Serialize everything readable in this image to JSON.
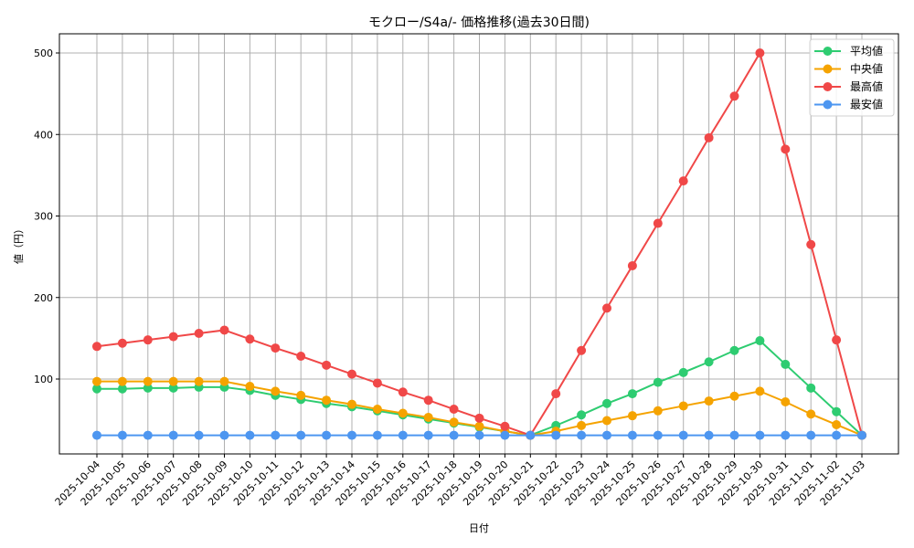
{
  "chart_data": {
    "type": "line",
    "title": "モクロー/S4a/- 価格推移(過去30日間)",
    "xlabel": "日付",
    "ylabel": "値（円）",
    "ylim": [
      20,
      525
    ],
    "yticks": [
      100,
      200,
      300,
      400,
      500
    ],
    "grid": true,
    "legend_position": "upper right",
    "categories": [
      "2025-10-04",
      "2025-10-05",
      "2025-10-06",
      "2025-10-07",
      "2025-10-08",
      "2025-10-09",
      "2025-10-10",
      "2025-10-11",
      "2025-10-12",
      "2025-10-13",
      "2025-10-14",
      "2025-10-15",
      "2025-10-16",
      "2025-10-17",
      "2025-10-18",
      "2025-10-19",
      "2025-10-20",
      "2025-10-21",
      "2025-10-22",
      "2025-10-23",
      "2025-10-24",
      "2025-10-25",
      "2025-10-26",
      "2025-10-27",
      "2025-10-28",
      "2025-10-29",
      "2025-10-30",
      "2025-10-31",
      "2025-11-01",
      "2025-11-02",
      "2025-11-03"
    ],
    "series": [
      {
        "name": "平均値",
        "color": "#2ecc71",
        "values": [
          88,
          88,
          89,
          89,
          90,
          90,
          86,
          80,
          75,
          70,
          66,
          61,
          56,
          51,
          46,
          41,
          36,
          31,
          43,
          56,
          70,
          82,
          96,
          108,
          121,
          135,
          147,
          118,
          89,
          60,
          31
        ]
      },
      {
        "name": "中央値",
        "color": "#f5a300",
        "values": [
          97,
          97,
          97,
          97,
          97,
          97,
          91,
          85,
          80,
          74,
          69,
          63,
          58,
          53,
          47,
          42,
          36,
          31,
          36,
          43,
          49,
          55,
          61,
          67,
          73,
          79,
          85,
          72,
          57,
          44,
          31
        ]
      },
      {
        "name": "最高値",
        "color": "#f04848",
        "values": [
          140,
          144,
          148,
          152,
          156,
          160,
          149,
          138,
          128,
          117,
          106,
          95,
          84,
          74,
          63,
          52,
          42,
          31,
          82,
          135,
          187,
          239,
          291,
          343,
          396,
          447,
          500,
          382,
          265,
          148,
          31
        ]
      },
      {
        "name": "最安値",
        "color": "#4d96f0",
        "values": [
          31,
          31,
          31,
          31,
          31,
          31,
          31,
          31,
          31,
          31,
          31,
          31,
          31,
          31,
          31,
          31,
          31,
          31,
          31,
          31,
          31,
          31,
          31,
          31,
          31,
          31,
          31,
          31,
          31,
          31,
          31
        ]
      }
    ]
  }
}
